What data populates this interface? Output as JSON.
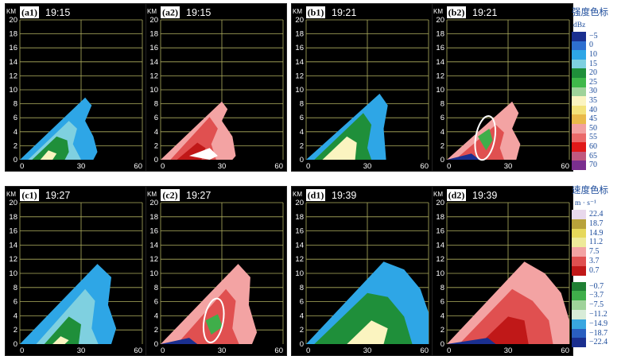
{
  "panels": [
    {
      "id": "a1",
      "label": "(a1)",
      "time": "19:15",
      "mode": "intensity",
      "circle": false
    },
    {
      "id": "a2",
      "label": "(a2)",
      "time": "19:15",
      "mode": "velocity",
      "circle": false
    },
    {
      "id": "b1",
      "label": "(b1)",
      "time": "19:21",
      "mode": "intensity",
      "circle": false
    },
    {
      "id": "b2",
      "label": "(b2)",
      "time": "19:21",
      "mode": "velocity",
      "circle": true
    },
    {
      "id": "c1",
      "label": "(c1)",
      "time": "19:27",
      "mode": "intensity",
      "circle": false
    },
    {
      "id": "c2",
      "label": "(c2)",
      "time": "19:27",
      "mode": "velocity",
      "circle": true
    },
    {
      "id": "d1",
      "label": "(d1)",
      "time": "19:39",
      "mode": "intensity",
      "circle": false
    },
    {
      "id": "d2",
      "label": "(d2)",
      "time": "19:39",
      "mode": "velocity",
      "circle": false
    }
  ],
  "axes": {
    "y_unit": "KM",
    "y_ticks": [
      "20",
      "18",
      "16",
      "14",
      "12",
      "10",
      "8",
      "6",
      "4",
      "2",
      "0"
    ],
    "x_ticks": [
      "0",
      "30",
      "60"
    ]
  },
  "intensity_legend": {
    "title": "强度色标",
    "unit": "dBz",
    "ticks": [
      "−5",
      "0",
      "10",
      "15",
      "20",
      "25",
      "30",
      "35",
      "40",
      "45",
      "50",
      "55",
      "60",
      "65",
      "70"
    ],
    "colors": [
      "#1a2f8f",
      "#2e6fd0",
      "#2ea6e6",
      "#7fd0e0",
      "#1f8f3a",
      "#3fb84a",
      "#9fd39a",
      "#fbf4c0",
      "#f3e27a",
      "#e9b94a",
      "#f2a0a0",
      "#ea6a6a",
      "#e01818",
      "#c0587f",
      "#7a2f8f"
    ]
  },
  "velocity_legend": {
    "title": "速度色标",
    "unit": "m · s⁻¹",
    "ticks": [
      "22.4",
      "18.7",
      "14.9",
      "11.2",
      "7.5",
      "3.7",
      "0.7",
      "−0.7",
      "−3.7",
      "−7.5",
      "−11.2",
      "−14.9",
      "−18.7",
      "−22.4"
    ],
    "colors": [
      "#e8d8ec",
      "#b8a23a",
      "#e6d85a",
      "#eeea9a",
      "#f3a3a3",
      "#e05050",
      "#c01818",
      "#1f7f33",
      "#3fae4a",
      "#9fd29a",
      "#d8ecd8",
      "#39a6e0",
      "#2a5fc0",
      "#1a2f8f"
    ]
  }
}
